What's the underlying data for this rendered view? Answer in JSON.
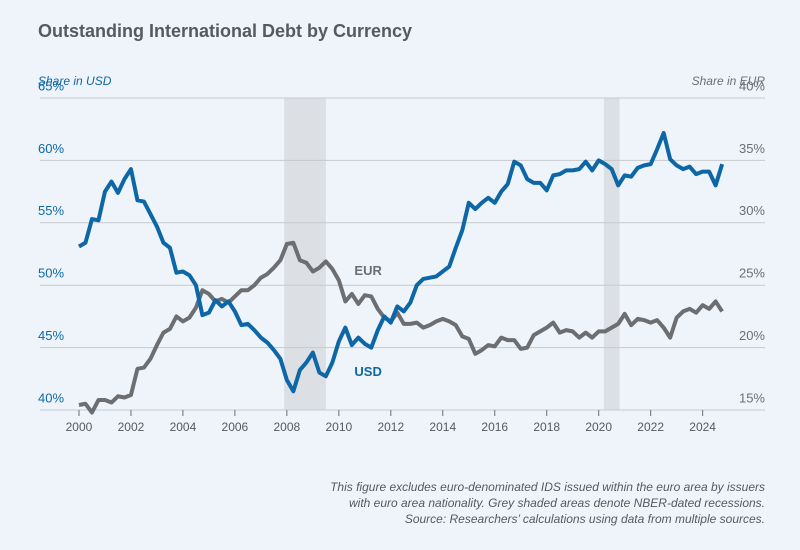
{
  "chart_data": {
    "type": "line",
    "title": "Outstanding International Debt by Currency",
    "y_label": "Share in USD",
    "y2_label": "Share in EUR",
    "footnote": [
      "This figure excludes euro-denominated IDS issued within the euro area by issuers",
      "with euro area nationality. Grey shaded areas denote NBER-dated recessions.",
      "Source: Researchers’ calculations using data from multiple sources."
    ],
    "annotations": [
      {
        "text": "EUR",
        "x": 2010.6,
        "y": 26.1,
        "axis": "y2"
      },
      {
        "text": "USD",
        "x": 2010.6,
        "y": 43.0
      }
    ],
    "recessions": [
      [
        2007.9,
        2009.5
      ],
      [
        2020.2,
        2020.8
      ]
    ],
    "recession_color": "#dcdfe4",
    "xlim": [
      1998.5,
      2026.4
    ],
    "xticks": [
      2000,
      2002,
      2004,
      2006,
      2008,
      2010,
      2012,
      2014,
      2016,
      2018,
      2020,
      2022,
      2024
    ],
    "ylim": [
      40,
      65
    ],
    "yticks": [
      {
        "value": 40,
        "label": "40%"
      },
      {
        "value": 45,
        "label": "45%"
      },
      {
        "value": 50,
        "label": "50%"
      },
      {
        "value": 55,
        "label": "55%"
      },
      {
        "value": 60,
        "label": "60%"
      },
      {
        "value": 65,
        "label": "65%"
      }
    ],
    "y2lim": [
      15,
      40
    ],
    "y2ticks": [
      {
        "value": 15,
        "label": "15%"
      },
      {
        "value": 20,
        "label": "20%"
      },
      {
        "value": 25,
        "label": "25%"
      },
      {
        "value": 30,
        "label": "30%"
      },
      {
        "value": 35,
        "label": "35%"
      },
      {
        "value": 40,
        "label": "40%"
      }
    ],
    "grid": true,
    "x": [
      2000,
      2000.25,
      2000.5,
      2000.75,
      2001,
      2001.25,
      2001.5,
      2001.75,
      2002,
      2002.25,
      2002.5,
      2002.75,
      2003,
      2003.25,
      2003.5,
      2003.75,
      2004,
      2004.25,
      2004.5,
      2004.75,
      2005,
      2005.25,
      2005.5,
      2005.75,
      2006,
      2006.25,
      2006.5,
      2006.75,
      2007,
      2007.25,
      2007.5,
      2007.75,
      2008,
      2008.25,
      2008.5,
      2008.75,
      2009,
      2009.25,
      2009.5,
      2009.75,
      2010,
      2010.25,
      2010.5,
      2010.75,
      2011,
      2011.25,
      2011.5,
      2011.75,
      2012,
      2012.25,
      2012.5,
      2012.75,
      2013,
      2013.25,
      2013.5,
      2013.75,
      2014,
      2014.25,
      2014.5,
      2014.75,
      2015,
      2015.25,
      2015.5,
      2015.75,
      2016,
      2016.25,
      2016.5,
      2016.75,
      2017,
      2017.25,
      2017.5,
      2017.75,
      2018,
      2018.25,
      2018.5,
      2018.75,
      2019,
      2019.25,
      2019.5,
      2019.75,
      2020,
      2020.25,
      2020.5,
      2020.75,
      2021,
      2021.25,
      2021.5,
      2021.75,
      2022,
      2022.25,
      2022.5,
      2022.75,
      2023,
      2023.25,
      2023.5,
      2023.75,
      2024,
      2024.25,
      2024.5,
      2024.75
    ],
    "series": [
      {
        "name": "USD",
        "color": "#0d67a6",
        "values": [
          53.1,
          53.4,
          55.3,
          55.2,
          57.5,
          58.3,
          57.4,
          58.5,
          59.3,
          56.8,
          56.7,
          55.7,
          54.7,
          53.4,
          53.0,
          51.0,
          51.1,
          50.8,
          50.0,
          47.6,
          47.8,
          48.8,
          48.3,
          48.7,
          47.9,
          46.8,
          46.9,
          46.4,
          45.8,
          45.4,
          44.8,
          44.1,
          42.4,
          41.5,
          43.2,
          43.8,
          44.6,
          43.0,
          42.7,
          43.8,
          45.5,
          46.6,
          45.2,
          45.8,
          45.3,
          45.0,
          46.4,
          47.5,
          47.0,
          48.3,
          47.9,
          48.6,
          50.0,
          50.5,
          50.6,
          50.7,
          51.1,
          51.5,
          53.0,
          54.4,
          56.6,
          56.1,
          56.6,
          57.0,
          56.6,
          57.5,
          58.1,
          59.9,
          59.6,
          58.5,
          58.2,
          58.2,
          57.6,
          58.8,
          58.9,
          59.2,
          59.2,
          59.3,
          59.9,
          59.2,
          60.0,
          59.7,
          59.3,
          58.0,
          58.8,
          58.7,
          59.4,
          59.6,
          59.7,
          60.9,
          62.2,
          60.1,
          59.6,
          59.3,
          59.5,
          58.9,
          59.1,
          59.1,
          58.0,
          59.7
        ]
      },
      {
        "name": "EUR",
        "color": "#6d6e71",
        "axis": "y2",
        "values": [
          15.4,
          15.5,
          14.8,
          15.8,
          15.8,
          15.6,
          16.1,
          16.0,
          16.2,
          18.3,
          18.4,
          19.1,
          20.2,
          21.2,
          21.5,
          22.5,
          22.1,
          22.4,
          23.2,
          24.6,
          24.3,
          23.7,
          23.9,
          23.6,
          24.1,
          24.6,
          24.6,
          25.0,
          25.6,
          25.9,
          26.4,
          27.0,
          28.3,
          28.4,
          27.0,
          26.8,
          26.1,
          26.4,
          26.9,
          26.3,
          25.4,
          23.7,
          24.3,
          23.5,
          24.2,
          24.1,
          23.1,
          22.4,
          22.1,
          22.8,
          21.9,
          21.9,
          22.0,
          21.6,
          21.8,
          22.1,
          22.3,
          22.1,
          21.8,
          20.9,
          20.7,
          19.5,
          19.8,
          20.2,
          20.1,
          20.8,
          20.6,
          20.6,
          19.9,
          20.0,
          21.0,
          21.3,
          21.6,
          22.0,
          21.2,
          21.4,
          21.3,
          20.8,
          21.2,
          20.8,
          21.3,
          21.3,
          21.6,
          21.9,
          22.7,
          21.8,
          22.3,
          22.2,
          22.0,
          22.2,
          21.6,
          20.8,
          22.4,
          22.9,
          23.1,
          22.8,
          23.4,
          23.1,
          23.7,
          22.9
        ]
      }
    ]
  }
}
